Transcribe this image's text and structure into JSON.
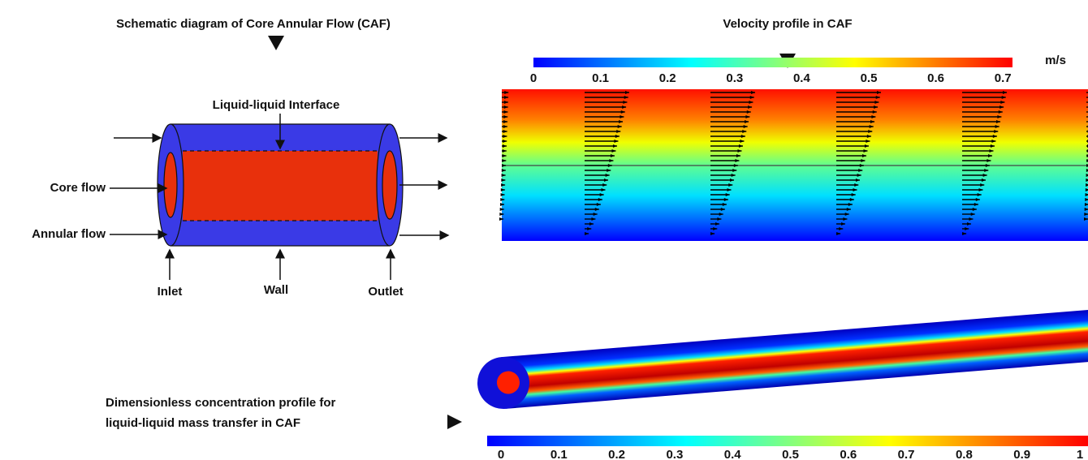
{
  "schematic": {
    "title": "Schematic diagram of Core Annular Flow (CAF)",
    "labels": {
      "interface": "Liquid-liquid Interface",
      "core": "Core flow",
      "annular": "Annular flow",
      "inlet": "Inlet",
      "wall": "Wall",
      "outlet": "Outlet"
    }
  },
  "velocity": {
    "title": "Velocity profile in CAF",
    "unit": "m/s",
    "colorbar_ticks": [
      "0",
      "0.1",
      "0.2",
      "0.3",
      "0.4",
      "0.5",
      "0.6",
      "0.7"
    ]
  },
  "concentration": {
    "title_lines": [
      "Dimensionless concentration profile for",
      "liquid-liquid mass transfer in CAF"
    ],
    "colorbar_ticks": [
      "0",
      "0.1",
      "0.2",
      "0.3",
      "0.4",
      "0.5",
      "0.6",
      "0.7",
      "0.8",
      "0.9",
      "1"
    ]
  }
}
